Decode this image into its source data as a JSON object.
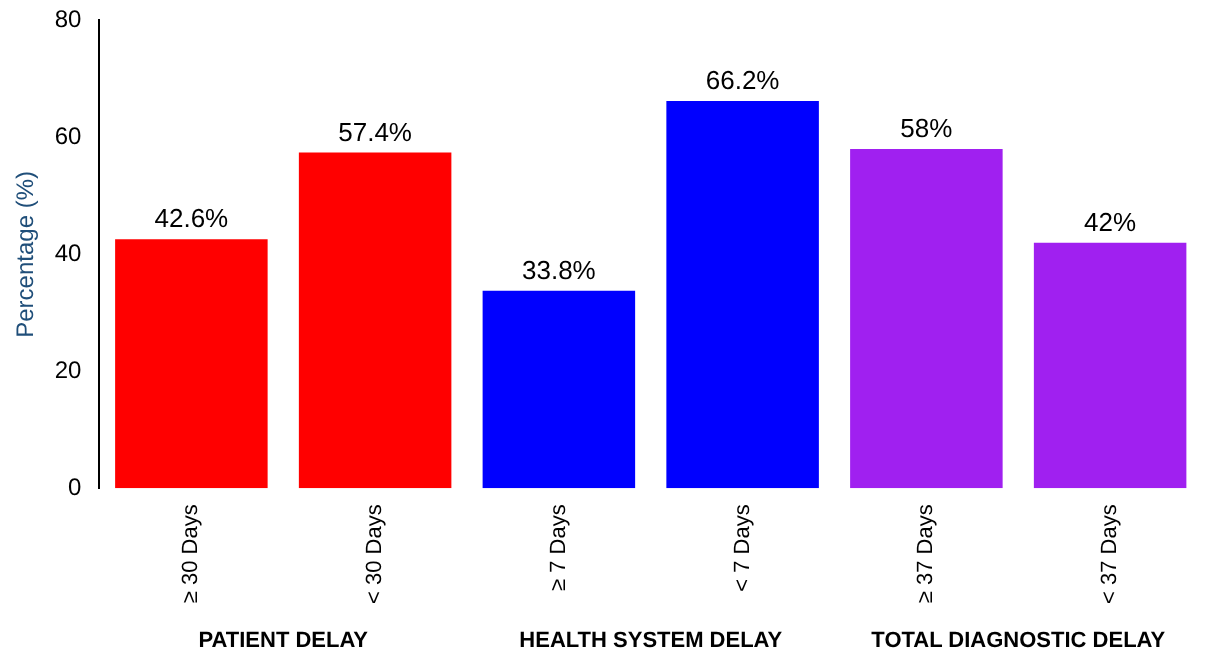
{
  "chart_data": {
    "type": "bar",
    "ylabel": "Percentage (%)",
    "categories": [
      "≥ 30 Days",
      "< 30 Days",
      "≥ 7 Days",
      "< 7 Days",
      "≥ 37 Days",
      "< 37 Days"
    ],
    "values": [
      42.6,
      57.4,
      33.8,
      66.2,
      58,
      42
    ],
    "colors": [
      "#ff0000",
      "#ff0000",
      "#0000ff",
      "#0000ff",
      "#a020f0",
      "#a020f0"
    ],
    "value_labels": [
      "42.6%",
      "57.4%",
      "33.8%",
      "66.2%",
      "58%",
      "42%"
    ],
    "ylim": [
      0,
      80
    ],
    "yticks": [
      0,
      20,
      40,
      60,
      80
    ],
    "grid": false,
    "legend": false,
    "annotations": [
      "PATIENT DELAY",
      "HEALTH SYSTEM DELAY",
      "TOTAL DIAGNOSTIC DELAY"
    ]
  }
}
